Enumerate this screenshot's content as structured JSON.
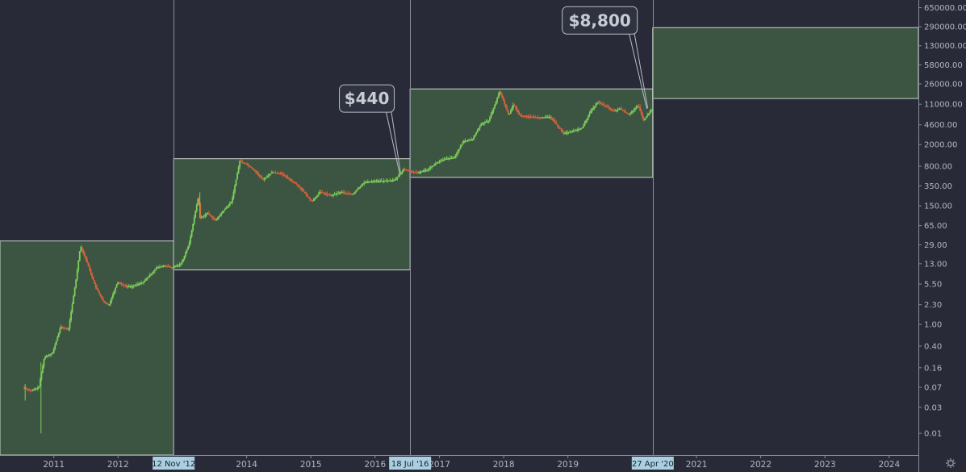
{
  "chart_data": {
    "type": "candlestick",
    "y_scale": "log",
    "ylim": [
      0.004,
      900000
    ],
    "xlim": [
      "2010-03-01",
      "2024-06-15"
    ],
    "y_ticks": [
      {
        "v": 650000,
        "label": "650000.00"
      },
      {
        "v": 290000,
        "label": "290000.00"
      },
      {
        "v": 130000,
        "label": "130000.00"
      },
      {
        "v": 58000,
        "label": "58000.00"
      },
      {
        "v": 26000,
        "label": "26000.00"
      },
      {
        "v": 11000,
        "label": "11000.00"
      },
      {
        "v": 4600,
        "label": "4600.00"
      },
      {
        "v": 2000,
        "label": "2000.00"
      },
      {
        "v": 800,
        "label": "800.00"
      },
      {
        "v": 350,
        "label": "350.00"
      },
      {
        "v": 150,
        "label": "150.00"
      },
      {
        "v": 65,
        "label": "65.00"
      },
      {
        "v": 29,
        "label": "29.00"
      },
      {
        "v": 13,
        "label": "13.00"
      },
      {
        "v": 5.5,
        "label": "5.50"
      },
      {
        "v": 2.3,
        "label": "2.30"
      },
      {
        "v": 1,
        "label": "1.00"
      },
      {
        "v": 0.4,
        "label": "0.40"
      },
      {
        "v": 0.16,
        "label": "0.16"
      },
      {
        "v": 0.07,
        "label": "0.07"
      },
      {
        "v": 0.03,
        "label": "0.03"
      },
      {
        "v": 0.01,
        "label": "0.01"
      }
    ],
    "x_ticks": [
      {
        "date": "2011-01-01",
        "label": "2011"
      },
      {
        "date": "2012-01-01",
        "label": "2012"
      },
      {
        "date": "2014-01-01",
        "label": "2014"
      },
      {
        "date": "2015-01-01",
        "label": "2015"
      },
      {
        "date": "2016-01-01",
        "label": "2016"
      },
      {
        "date": "2017-01-01",
        "label": "2017"
      },
      {
        "date": "2018-01-01",
        "label": "2018"
      },
      {
        "date": "2019-01-01",
        "label": "2019"
      },
      {
        "date": "2021-01-01",
        "label": "2021"
      },
      {
        "date": "2022-01-01",
        "label": "2022"
      },
      {
        "date": "2023-01-01",
        "label": "2023"
      },
      {
        "date": "2024-01-01",
        "label": "2024"
      }
    ],
    "vlines": [
      {
        "date": "2012-11-12",
        "label": "12 Nov '12"
      },
      {
        "date": "2016-07-18",
        "label": "18 Jul '16"
      },
      {
        "date": "2020-04-27",
        "label": "27 Apr '20"
      }
    ],
    "zones": [
      {
        "x0": "2010-03-01",
        "x1": "2012-11-12",
        "low": 0.004,
        "high": 34
      },
      {
        "x0": "2012-11-12",
        "x1": "2016-07-18",
        "low": 10,
        "high": 1100
      },
      {
        "x0": "2016-07-18",
        "x1": "2020-04-27",
        "low": 500,
        "high": 21000
      },
      {
        "x0": "2020-04-27",
        "x1": "2024-06-15",
        "low": 14000,
        "high": 280000
      }
    ],
    "callouts": [
      {
        "text": "$440",
        "box_date": "2015-11-15",
        "box_value": 14000,
        "point_date": "2016-05-20",
        "point_value": 580
      },
      {
        "text": "$8,800",
        "box_date": "2019-07-01",
        "box_value": 380000,
        "point_date": "2020-03-25",
        "point_value": 9000
      }
    ],
    "price_series": {
      "x": [
        "2010-07-17",
        "2010-09-01",
        "2010-10-15",
        "2010-11-15",
        "2011-01-01",
        "2011-02-15",
        "2011-04-01",
        "2011-05-15",
        "2011-06-08",
        "2011-07-15",
        "2011-09-01",
        "2011-10-20",
        "2011-11-18",
        "2012-01-05",
        "2012-02-20",
        "2012-04-01",
        "2012-06-01",
        "2012-08-15",
        "2012-10-01",
        "2012-11-12",
        "2013-01-01",
        "2013-02-15",
        "2013-04-09",
        "2013-04-20",
        "2013-06-01",
        "2013-07-15",
        "2013-09-01",
        "2013-10-15",
        "2013-11-30",
        "2014-01-15",
        "2014-02-25",
        "2014-04-10",
        "2014-06-01",
        "2014-07-15",
        "2014-09-15",
        "2014-11-01",
        "2015-01-14",
        "2015-03-01",
        "2015-05-01",
        "2015-07-01",
        "2015-09-01",
        "2015-11-04",
        "2015-12-31",
        "2016-03-01",
        "2016-05-01",
        "2016-06-18",
        "2016-07-18",
        "2016-09-01",
        "2016-11-01",
        "2017-01-01",
        "2017-02-15",
        "2017-04-01",
        "2017-05-25",
        "2017-07-15",
        "2017-09-01",
        "2017-10-15",
        "2017-12-17",
        "2018-02-06",
        "2018-03-05",
        "2018-04-10",
        "2018-06-01",
        "2018-08-01",
        "2018-10-01",
        "2018-12-15",
        "2019-02-15",
        "2019-04-01",
        "2019-05-15",
        "2019-06-26",
        "2019-08-01",
        "2019-09-25",
        "2019-11-01",
        "2019-12-18",
        "2020-02-13",
        "2020-03-13",
        "2020-04-27"
      ],
      "y": [
        0.07,
        0.06,
        0.07,
        0.25,
        0.3,
        0.9,
        0.8,
        7,
        28,
        14,
        5,
        2.5,
        2.3,
        6,
        5,
        5,
        6,
        11,
        12,
        11,
        13,
        30,
        230,
        90,
        110,
        80,
        125,
        180,
        1000,
        850,
        650,
        450,
        620,
        600,
        450,
        340,
        180,
        270,
        230,
        270,
        240,
        400,
        430,
        430,
        450,
        700,
        660,
        600,
        700,
        960,
        1100,
        1150,
        2300,
        2500,
        4800,
        5500,
        19000,
        6900,
        11000,
        6800,
        6500,
        6300,
        6400,
        3200,
        3600,
        4100,
        8000,
        12000,
        10500,
        8200,
        9200,
        7100,
        10300,
        5500,
        8800
      ]
    }
  }
}
